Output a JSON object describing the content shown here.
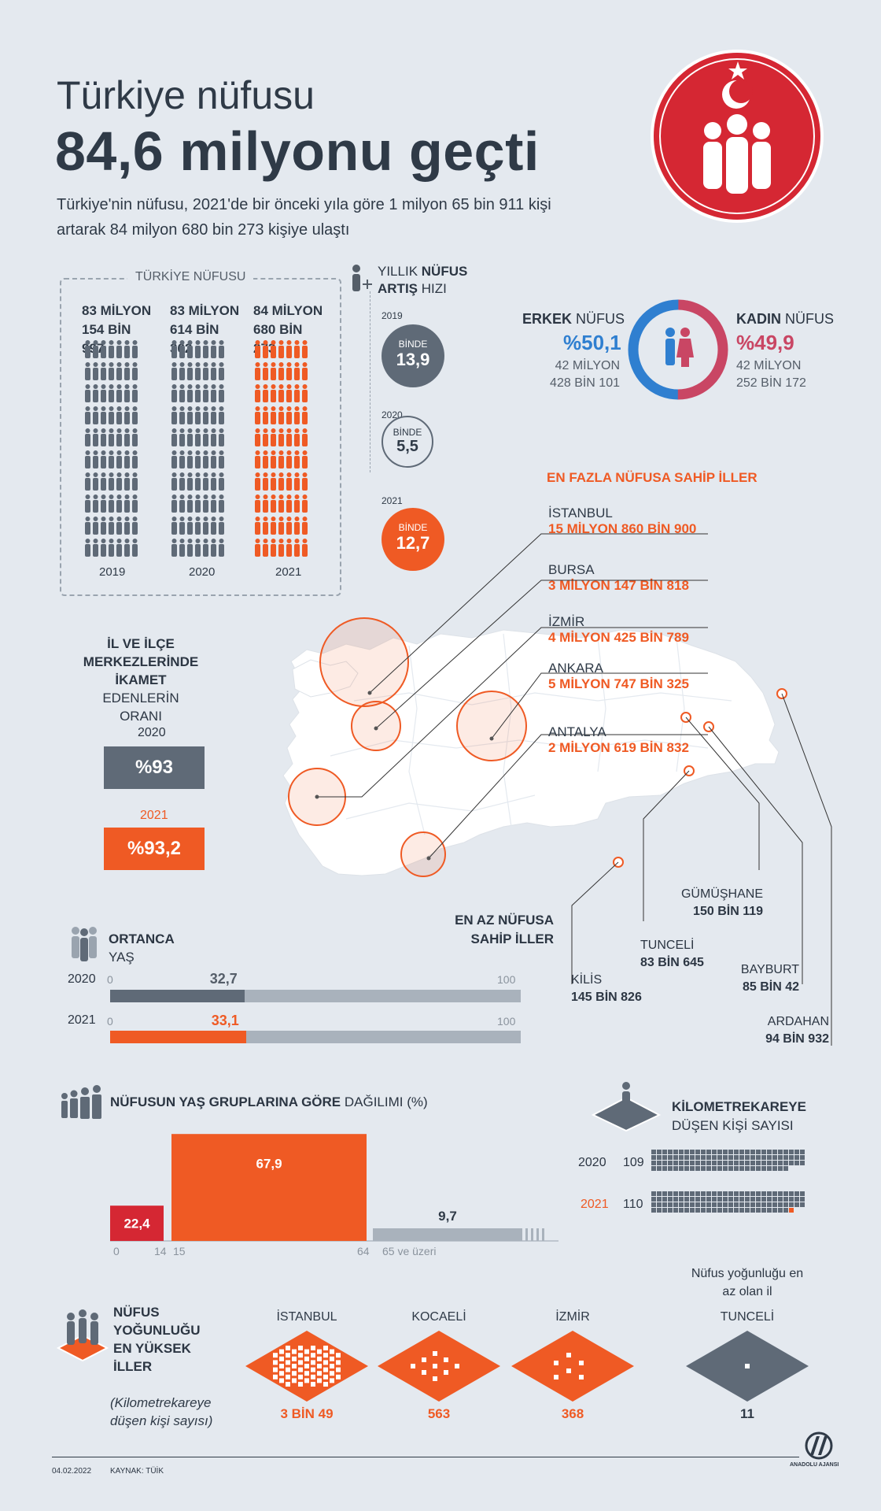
{
  "header": {
    "title_line1": "Türkiye nüfusu",
    "title_line2": "84,6 milyonu geçti",
    "subtitle": "Türkiye'nin nüfusu, 2021'de bir önceki yıla göre 1 milyon 65 bin 911 kişi artarak 84 milyon 680 bin 273 kişiye ulaştı"
  },
  "population": {
    "box_label": "TÜRKİYE NÜFUSU",
    "years": [
      {
        "year": "2019",
        "line1": "83 MİLYON",
        "line2": "154 BİN",
        "line3": "997",
        "value": 83154997
      },
      {
        "year": "2020",
        "line1": "83 MİLYON",
        "line2": "614 BİN",
        "line3": "362",
        "value": 83614362
      },
      {
        "year": "2021",
        "line1": "84 MİLYON",
        "line2": "680 BİN",
        "line3": "273",
        "value": 84680273
      }
    ]
  },
  "growth": {
    "title_prefix": "YILLIK ",
    "title_bold1": "NÜFUS",
    "title_bold2": "ARTIŞ",
    "title_suffix": " HIZI",
    "items": [
      {
        "year": "2019",
        "label": "BİNDE",
        "value": "13,9"
      },
      {
        "year": "2020",
        "label": "BİNDE",
        "value": "5,5"
      },
      {
        "year": "2021",
        "label": "BİNDE",
        "value": "12,7"
      }
    ]
  },
  "gender": {
    "male_title_bold": "ERKEK",
    "male_title": " NÜFUS",
    "male_pct": "%50,1",
    "male_l1": "42 MİLYON",
    "male_l2": "428 BİN 101",
    "female_title_bold": "KADIN",
    "female_title": " NÜFUS",
    "female_pct": "%49,9",
    "female_l1": "42 MİLYON",
    "female_l2": "252 BİN 172",
    "male_share": 50.1,
    "female_share": 49.9,
    "colors": {
      "male": "#2f7fd0",
      "female": "#c94664"
    }
  },
  "top_cities": {
    "title": "EN FAZLA NÜFUSA SAHİP İLLER",
    "items": [
      {
        "name": "İSTANBUL",
        "value": "15 MİLYON 860 BİN 900"
      },
      {
        "name": "BURSA",
        "value": "3 MİLYON 147 BİN 818"
      },
      {
        "name": "İZMİR",
        "value": "4 MİLYON 425 BİN 789"
      },
      {
        "name": "ANKARA",
        "value": "5 MİLYON 747 BİN 325"
      },
      {
        "name": "ANTALYA",
        "value": "2 MİLYON 619 BİN 832"
      }
    ]
  },
  "least_cities": {
    "title_l1": "EN AZ NÜFUSA",
    "title_l2": "SAHİP İLLER",
    "items": [
      {
        "name": "KİLİS",
        "value": "145 BİN 826"
      },
      {
        "name": "TUNCELİ",
        "value": "83 BİN 645"
      },
      {
        "name": "GÜMÜŞHANE",
        "value": "150 BİN 119"
      },
      {
        "name": "BAYBURT",
        "value": "85 BİN 42"
      },
      {
        "name": "ARDAHAN",
        "value": "94 BİN 932"
      }
    ]
  },
  "urban": {
    "title_l1": "İL VE İLÇE",
    "title_l2": "MERKEZLERİNDE",
    "title_l3_bold": "İKAMET",
    "title_l3": " EDENLERİN",
    "title_l4": "ORANI",
    "items": [
      {
        "year": "2020",
        "value": "%93"
      },
      {
        "year": "2021",
        "value": "%93,2"
      }
    ]
  },
  "median_age": {
    "title_bold": "ORTANCA",
    "title": "YAŞ",
    "min_label": "0",
    "max_label": "100",
    "items": [
      {
        "year": "2020",
        "value": "32,7",
        "num": 32.7
      },
      {
        "year": "2021",
        "value": "33,1",
        "num": 33.1
      }
    ]
  },
  "age_groups": {
    "title_bold": "NÜFUSUN YAŞ GRUPLARINA GÖRE",
    "title": " DAĞILIMI (%)",
    "items": [
      {
        "range_start": "0",
        "range_end": "14",
        "value": "22,4",
        "num": 22.4
      },
      {
        "range_start": "15",
        "range_end": "64",
        "value": "67,9",
        "num": 67.9
      },
      {
        "range_start": "65 ve üzeri",
        "range_end": "",
        "value": "9,7",
        "num": 9.7
      }
    ]
  },
  "density": {
    "title_bold": "KİLOMETREKAREYE",
    "title": "DÜŞEN KİŞİ SAYISI",
    "items": [
      {
        "year": "2020",
        "value": "109",
        "num": 109
      },
      {
        "year": "2021",
        "value": "110",
        "num": 110
      }
    ]
  },
  "density_cities": {
    "title_l1": "NÜFUS",
    "title_l2": "YOĞUNLUĞU",
    "title_l3": "EN YÜKSEK",
    "title_l4": "İLLER",
    "note": "(Kilometrekareye düşen kişi sayısı)",
    "least_title": "Nüfus yoğunluğu en az olan il",
    "items": [
      {
        "name": "İSTANBUL",
        "value": "3 BİN 49"
      },
      {
        "name": "KOCAELİ",
        "value": "563"
      },
      {
        "name": "İZMİR",
        "value": "368"
      },
      {
        "name": "TUNCELİ",
        "value": "11"
      }
    ]
  },
  "footer": {
    "date": "04.02.2022",
    "source": "KAYNAK: TÜİK",
    "brand": "ANADOLU AJANSI"
  },
  "chart_data": [
    {
      "type": "bar",
      "title": "TÜRKİYE NÜFUSU",
      "categories": [
        "2019",
        "2020",
        "2021"
      ],
      "values": [
        83154997,
        83614362,
        84680273
      ]
    },
    {
      "type": "bar",
      "title": "YILLIK NÜFUS ARTIŞ HIZI (BİNDE)",
      "categories": [
        "2019",
        "2020",
        "2021"
      ],
      "values": [
        13.9,
        5.5,
        12.7
      ]
    },
    {
      "type": "pie",
      "title": "ERKEK / KADIN NÜFUS",
      "categories": [
        "ERKEK",
        "KADIN"
      ],
      "values": [
        50.1,
        49.9
      ]
    },
    {
      "type": "bar",
      "title": "ORTANCA YAŞ",
      "categories": [
        "2020",
        "2021"
      ],
      "values": [
        32.7,
        33.1
      ],
      "ylim": [
        0,
        100
      ]
    },
    {
      "type": "bar",
      "title": "NÜFUSUN YAŞ GRUPLARINA GÖRE DAĞILIMI (%)",
      "categories": [
        "0-14",
        "15-64",
        "65 ve üzeri"
      ],
      "values": [
        22.4,
        67.9,
        9.7
      ]
    },
    {
      "type": "bar",
      "title": "KİLOMETREKAREYE DÜŞEN KİŞİ SAYISI",
      "categories": [
        "2020",
        "2021"
      ],
      "values": [
        109,
        110
      ]
    },
    {
      "type": "bar",
      "title": "İL VE İLÇE MERKEZLERİNDE İKAMET EDENLERİN ORANI (%)",
      "categories": [
        "2020",
        "2021"
      ],
      "values": [
        93,
        93.2
      ]
    }
  ]
}
